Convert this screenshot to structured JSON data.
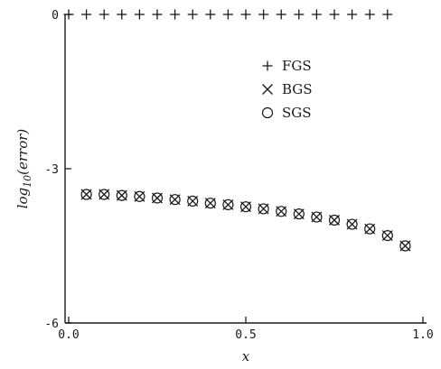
{
  "chart_data": {
    "type": "scatter",
    "xlabel": "x",
    "ylabel": "log10(error)",
    "ylabel_main": "log",
    "ylabel_sub": "10",
    "ylabel_rest": "(error)",
    "xlim": [
      0.0,
      1.0
    ],
    "ylim": [
      -6,
      0
    ],
    "xticks": [
      {
        "value": 0.0,
        "label": "0.0"
      },
      {
        "value": 0.5,
        "label": "0.5"
      },
      {
        "value": 1.0,
        "label": "1.0"
      }
    ],
    "yticks": [
      {
        "value": 0,
        "label": "0"
      },
      {
        "value": -3,
        "label": "-3"
      },
      {
        "value": -6,
        "label": "-6"
      }
    ],
    "grid": false,
    "legend_position": "top-right",
    "legend": [
      {
        "name": "FGS",
        "marker": "+"
      },
      {
        "name": "BGS",
        "marker": "×"
      },
      {
        "name": "SGS",
        "marker": "○"
      }
    ],
    "series": [
      {
        "name": "FGS",
        "marker": "plus",
        "x": [
          0.0,
          0.05,
          0.1,
          0.15,
          0.2,
          0.25,
          0.3,
          0.35,
          0.4,
          0.45,
          0.5,
          0.55,
          0.6,
          0.65,
          0.7,
          0.75,
          0.8,
          0.85,
          0.9
        ],
        "y": [
          0,
          0,
          0,
          0,
          0,
          0,
          0,
          0,
          0,
          0,
          0,
          0,
          0,
          0,
          0,
          0,
          0,
          0,
          0
        ]
      },
      {
        "name": "BGS",
        "marker": "cross",
        "x": [
          0.05,
          0.1,
          0.15,
          0.2,
          0.25,
          0.3,
          0.35,
          0.4,
          0.45,
          0.5,
          0.55,
          0.6,
          0.65,
          0.7,
          0.75,
          0.8,
          0.85,
          0.9,
          0.95
        ],
        "y": [
          -3.5,
          -3.5,
          -3.52,
          -3.54,
          -3.57,
          -3.6,
          -3.63,
          -3.67,
          -3.7,
          -3.74,
          -3.78,
          -3.83,
          -3.88,
          -3.94,
          -4.0,
          -4.08,
          -4.17,
          -4.3,
          -4.5
        ]
      },
      {
        "name": "SGS",
        "marker": "circle",
        "x": [
          0.05,
          0.1,
          0.15,
          0.2,
          0.25,
          0.3,
          0.35,
          0.4,
          0.45,
          0.5,
          0.55,
          0.6,
          0.65,
          0.7,
          0.75,
          0.8,
          0.85,
          0.9,
          0.95
        ],
        "y": [
          -3.5,
          -3.5,
          -3.52,
          -3.54,
          -3.57,
          -3.6,
          -3.63,
          -3.67,
          -3.7,
          -3.74,
          -3.78,
          -3.83,
          -3.88,
          -3.94,
          -4.0,
          -4.08,
          -4.17,
          -4.3,
          -4.5
        ]
      }
    ]
  },
  "colors": {
    "ink": "#1a1a1a",
    "background": "#ffffff"
  }
}
